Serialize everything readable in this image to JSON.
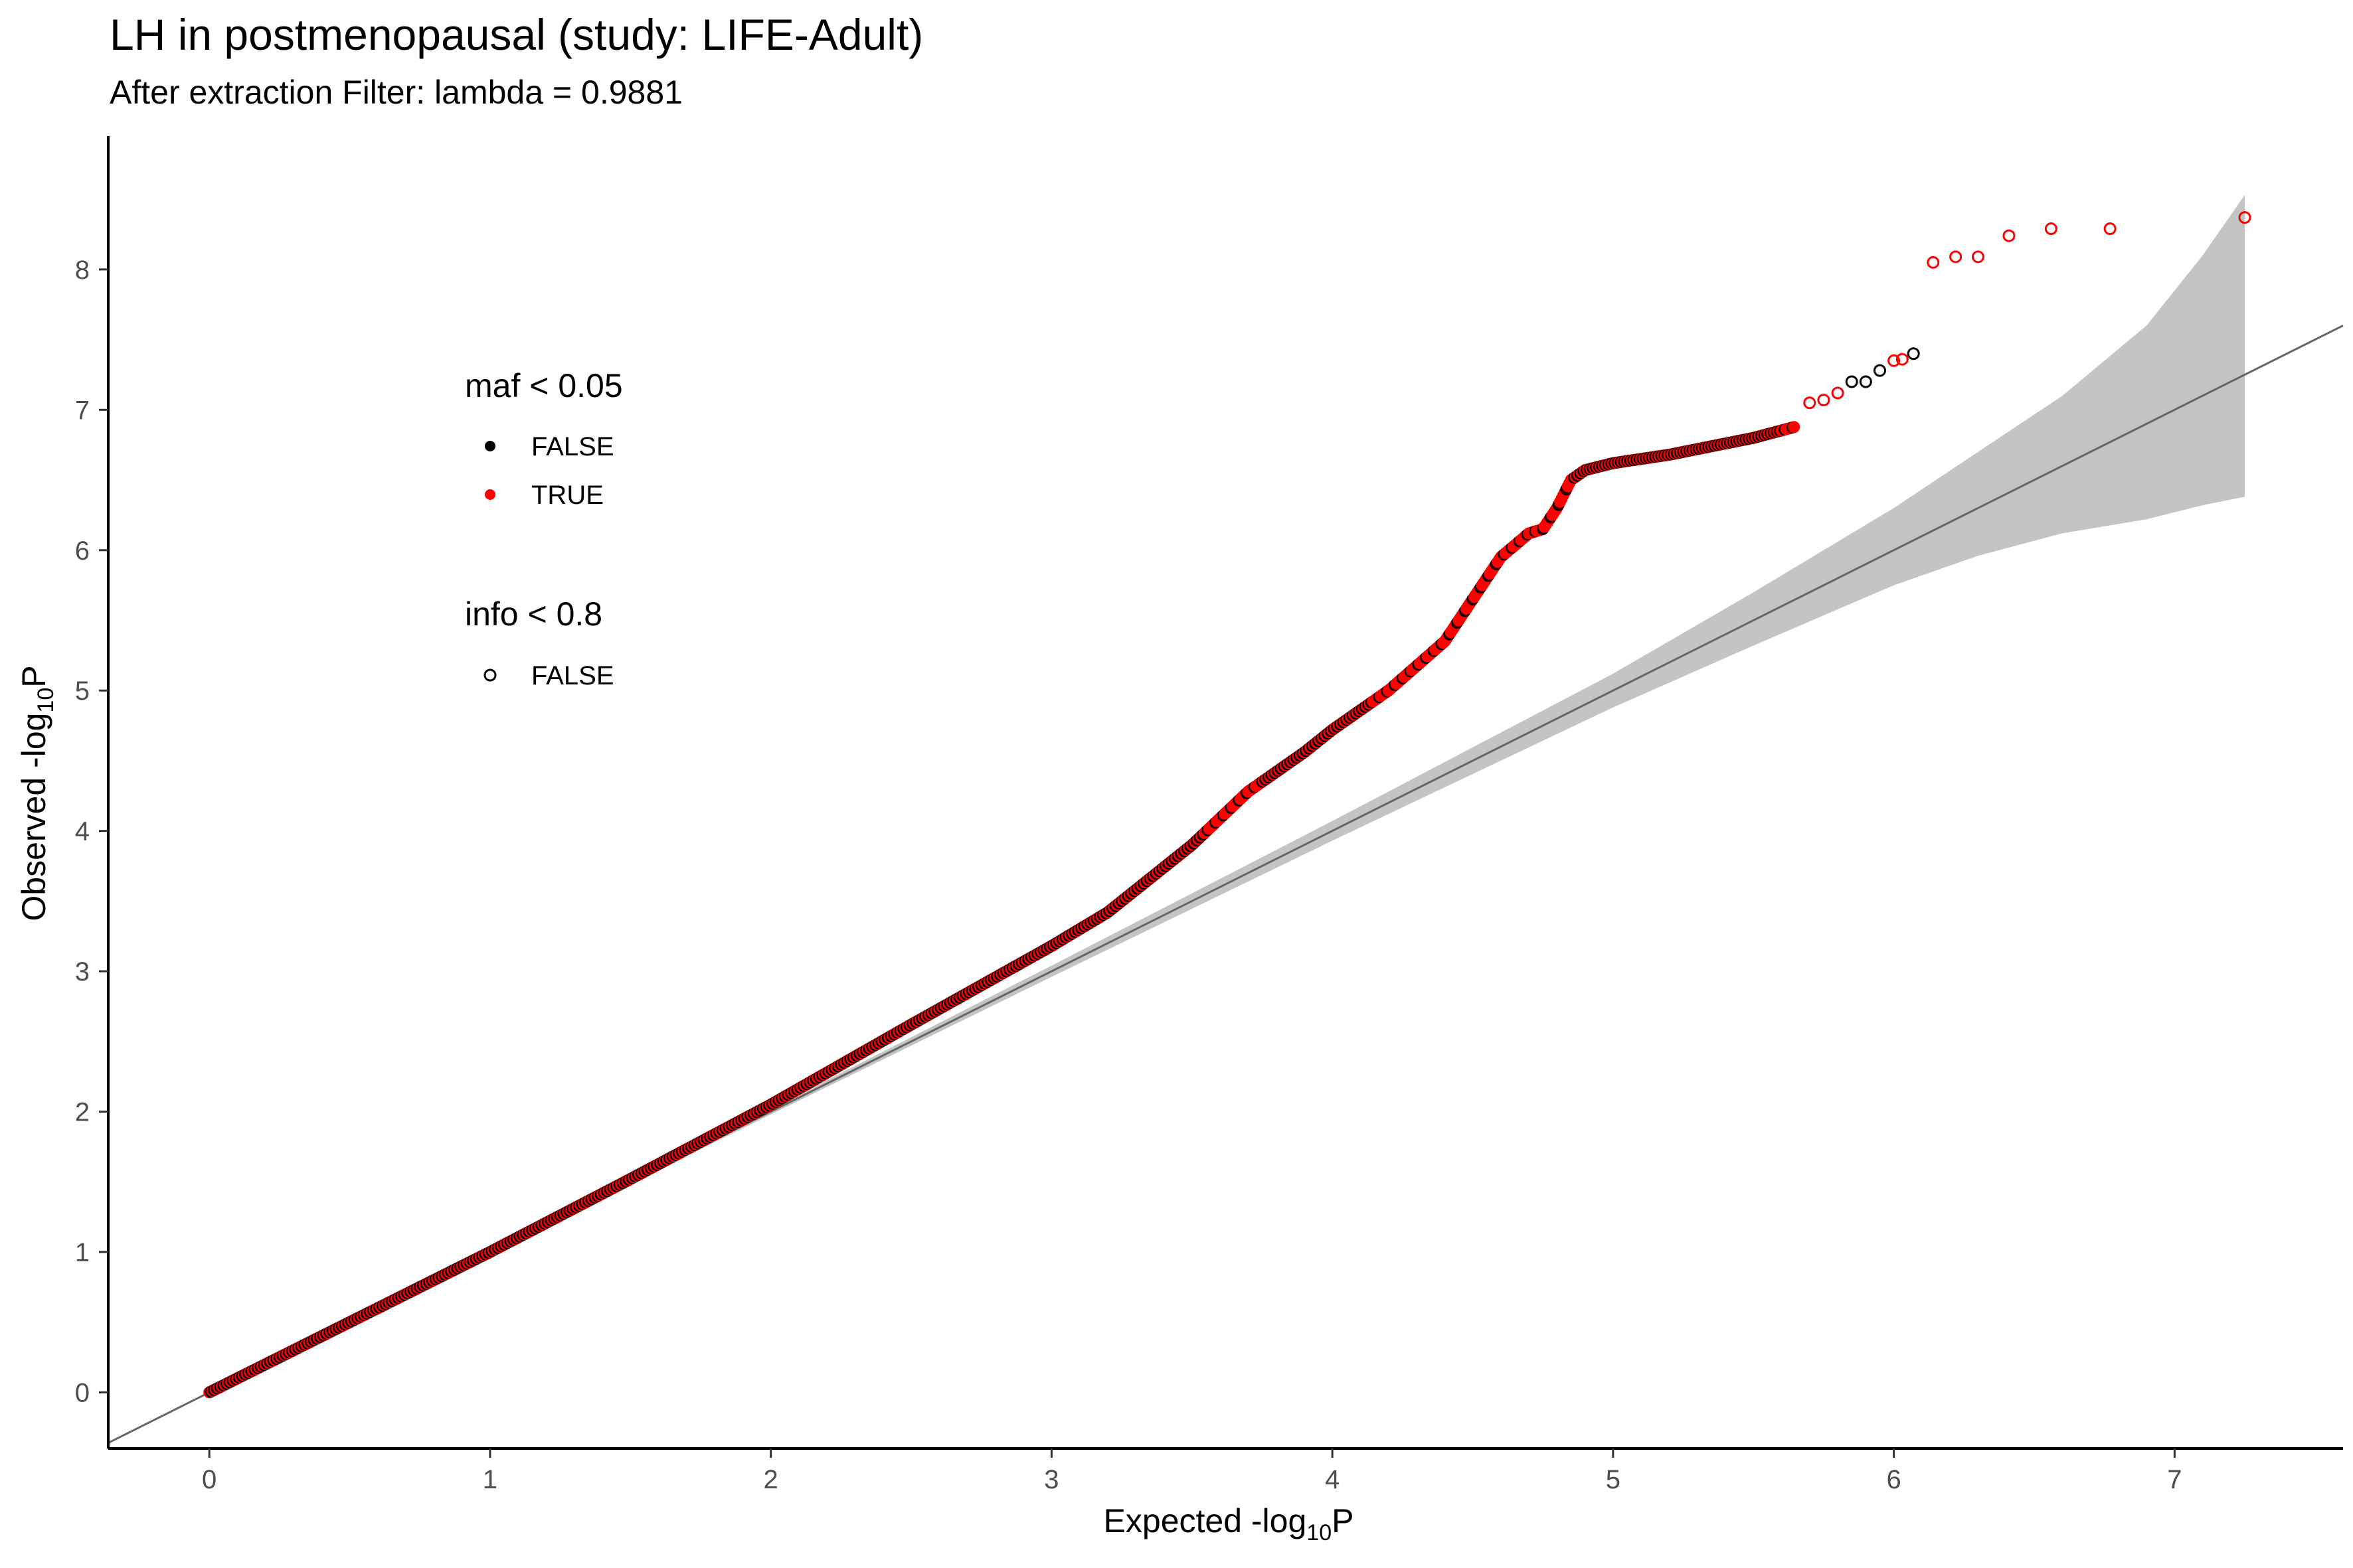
{
  "chart_data": {
    "type": "scatter",
    "title": "LH in postmenopausal (study: LIFE-Adult)",
    "subtitle": "After extraction Filter: lambda =  0.9881",
    "xlabel": {
      "main": "Expected -log",
      "sub": "10",
      "tail": "P"
    },
    "ylabel": {
      "main": "Observed -log",
      "sub": "10",
      "tail": "P"
    },
    "xlim": [
      -0.36,
      7.6
    ],
    "ylim": [
      -0.4,
      8.95
    ],
    "x_ticks": [
      0,
      1,
      2,
      3,
      4,
      5,
      6,
      7
    ],
    "y_ticks": [
      0,
      1,
      2,
      3,
      4,
      5,
      6,
      7,
      8
    ],
    "grid": false,
    "legend": {
      "position": "left-inside",
      "groups": [
        {
          "title": "maf < 0.05",
          "entries": [
            {
              "label": "FALSE",
              "shape": "filled-circle",
              "color": "#000000"
            },
            {
              "label": "TRUE",
              "shape": "filled-circle",
              "color": "#ff0000"
            }
          ]
        },
        {
          "title": "info < 0.8",
          "entries": [
            {
              "label": "FALSE",
              "shape": "open-circle",
              "color": "#000000"
            }
          ]
        }
      ]
    },
    "reference_line": {
      "slope": 1,
      "intercept": 0,
      "color": "#666666"
    },
    "confidence_band": {
      "color": "#c4c4c4",
      "x": [
        0,
        1,
        2,
        3,
        4,
        5,
        5.5,
        6,
        6.3,
        6.6,
        6.9,
        7.1,
        7.25
      ],
      "lower": [
        0,
        0.99,
        1.98,
        2.96,
        3.93,
        4.88,
        5.32,
        5.75,
        5.96,
        6.12,
        6.22,
        6.32,
        6.38
      ],
      "upper": [
        0,
        1.01,
        2.02,
        3.04,
        4.07,
        5.12,
        5.7,
        6.3,
        6.7,
        7.1,
        7.6,
        8.1,
        8.53
      ]
    },
    "series_colors": {
      "maf_false": "#000000",
      "maf_true": "#ff0000"
    },
    "curve": {
      "x": [
        0,
        0.5,
        1.0,
        1.5,
        2.0,
        2.5,
        3.0,
        3.2,
        3.5,
        3.7,
        3.9,
        4.0,
        4.2,
        4.4,
        4.5,
        4.6,
        4.7,
        4.75,
        4.8,
        4.85,
        4.9,
        5.0,
        5.2,
        5.4,
        5.5,
        5.65
      ],
      "y": [
        0,
        0.5,
        1.0,
        1.52,
        2.05,
        2.62,
        3.18,
        3.42,
        3.9,
        4.28,
        4.56,
        4.72,
        5.0,
        5.35,
        5.65,
        5.95,
        6.12,
        6.15,
        6.3,
        6.5,
        6.57,
        6.62,
        6.68,
        6.76,
        6.8,
        6.88
      ]
    },
    "points_open": [
      {
        "x": 5.7,
        "y": 7.05,
        "maf": "TRUE"
      },
      {
        "x": 5.75,
        "y": 7.07,
        "maf": "TRUE"
      },
      {
        "x": 5.8,
        "y": 7.12,
        "maf": "TRUE"
      },
      {
        "x": 5.85,
        "y": 7.2,
        "maf": "FALSE"
      },
      {
        "x": 5.9,
        "y": 7.2,
        "maf": "FALSE"
      },
      {
        "x": 5.95,
        "y": 7.28,
        "maf": "FALSE"
      },
      {
        "x": 6.0,
        "y": 7.35,
        "maf": "TRUE"
      },
      {
        "x": 6.03,
        "y": 7.36,
        "maf": "TRUE"
      },
      {
        "x": 6.07,
        "y": 7.4,
        "maf": "FALSE"
      },
      {
        "x": 6.14,
        "y": 8.05,
        "maf": "TRUE"
      },
      {
        "x": 6.22,
        "y": 8.09,
        "maf": "TRUE"
      },
      {
        "x": 6.3,
        "y": 8.09,
        "maf": "TRUE"
      },
      {
        "x": 6.41,
        "y": 8.24,
        "maf": "TRUE"
      },
      {
        "x": 6.56,
        "y": 8.29,
        "maf": "TRUE"
      },
      {
        "x": 6.77,
        "y": 8.29,
        "maf": "TRUE"
      },
      {
        "x": 7.25,
        "y": 8.37,
        "maf": "TRUE"
      }
    ]
  }
}
